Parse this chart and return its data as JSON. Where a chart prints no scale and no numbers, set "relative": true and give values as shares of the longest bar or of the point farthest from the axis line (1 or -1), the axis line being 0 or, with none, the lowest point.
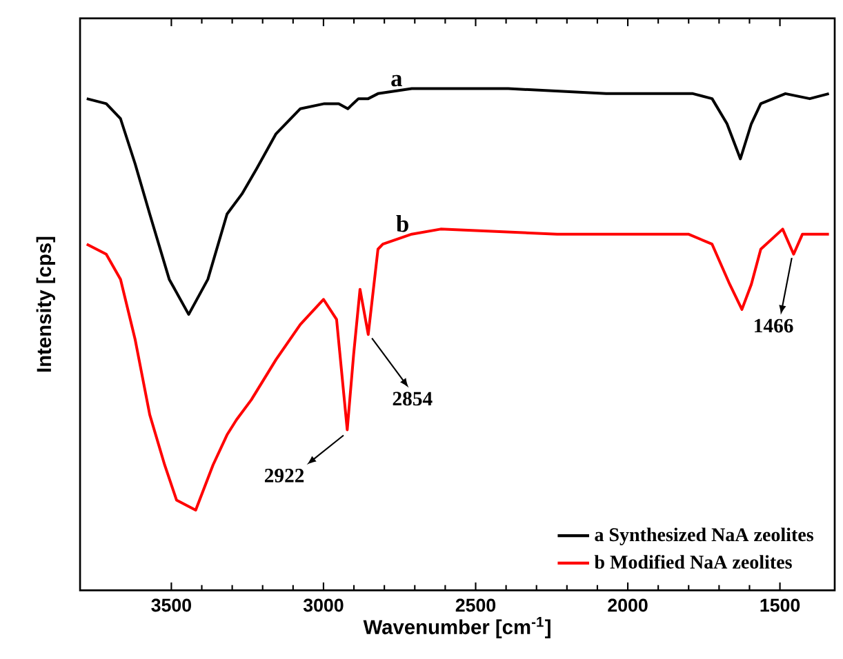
{
  "chart_data": {
    "type": "line",
    "relative": true,
    "xlabel": "Wavenumber [cm$^{-1}$]",
    "ylabel": "Intensity [cps]",
    "xlim": [
      3800,
      1320
    ],
    "xticks": [
      3500,
      3000,
      2500,
      2000,
      1500
    ],
    "tick_labels": "x",
    "legend": "bottom right",
    "grid": false,
    "marker": "none",
    "line_style": "solid",
    "series": [
      {
        "name": "a  Synthesized NaA zeolites",
        "color": "#000000",
        "x": [
          3778,
          3714,
          3667,
          3619,
          3571,
          3507,
          3443,
          3380,
          3317,
          3268,
          3220,
          3156,
          3076,
          2997,
          2950,
          2920,
          2885,
          2853,
          2821,
          2710,
          2393,
          2071,
          1786,
          1723,
          1674,
          1630,
          1594,
          1563,
          1482,
          1402,
          1339
        ],
        "values": [
          0.98,
          0.97,
          0.94,
          0.85,
          0.75,
          0.62,
          0.55,
          0.62,
          0.75,
          0.79,
          0.84,
          0.91,
          0.96,
          0.97,
          0.97,
          0.96,
          0.98,
          0.98,
          0.99,
          1.0,
          1.0,
          0.99,
          0.99,
          0.98,
          0.93,
          0.86,
          0.93,
          0.97,
          0.99,
          0.98,
          0.99
        ]
      },
      {
        "name": "b  Modified NaA zeolites",
        "color": "#ff0000",
        "x": [
          3778,
          3714,
          3667,
          3619,
          3571,
          3522,
          3483,
          3420,
          3363,
          3317,
          3286,
          3237,
          3156,
          3076,
          3000,
          2957,
          2922,
          2901,
          2880,
          2853,
          2821,
          2805,
          2710,
          2615,
          2232,
          1801,
          1723,
          1665,
          1625,
          1594,
          1563,
          1491,
          1455,
          1426,
          1339
        ],
        "values": [
          0.69,
          0.67,
          0.62,
          0.5,
          0.35,
          0.25,
          0.18,
          0.16,
          0.25,
          0.31,
          0.34,
          0.38,
          0.46,
          0.53,
          0.58,
          0.54,
          0.32,
          0.47,
          0.6,
          0.51,
          0.68,
          0.69,
          0.71,
          0.72,
          0.71,
          0.71,
          0.69,
          0.61,
          0.56,
          0.61,
          0.68,
          0.72,
          0.67,
          0.71,
          0.71
        ]
      }
    ],
    "annotations": [
      {
        "text": "a",
        "x": 2760,
        "y": 1.0
      },
      {
        "text": "b",
        "x": 2740,
        "y": 0.71
      },
      {
        "text": "2922",
        "x": 2922,
        "y": 0.32
      },
      {
        "text": "2854",
        "x": 2853,
        "y": 0.51
      },
      {
        "text": "1466",
        "x": 1455,
        "y": 0.67
      }
    ]
  }
}
